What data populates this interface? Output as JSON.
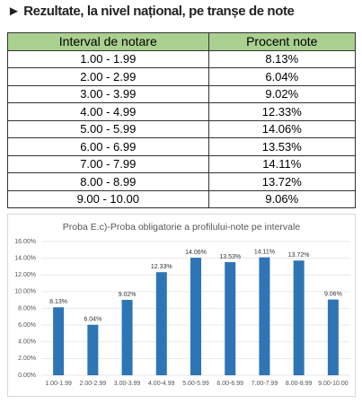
{
  "header": {
    "title": "► Rezultate, la nivel național, pe tranșe de note"
  },
  "table": {
    "columns": [
      "Interval de notare",
      "Procent note"
    ],
    "rows": [
      [
        "1.00 - 1.99",
        "8.13%"
      ],
      [
        "2.00 - 2.99",
        "6.04%"
      ],
      [
        "3.00 - 3.99",
        "9.02%"
      ],
      [
        "4.00 - 4.99",
        "12.33%"
      ],
      [
        "5.00 - 5.99",
        "14.06%"
      ],
      [
        "6.00 - 6.99",
        "13.53%"
      ],
      [
        "7.00 - 7.99",
        "14.11%"
      ],
      [
        "8.00 - 8.99",
        "13.72%"
      ],
      [
        "9.00 - 10.00",
        "9.06%"
      ]
    ]
  },
  "chart_data": {
    "type": "bar",
    "title": "Proba E.c)-Proba obligatorie a profilului-note pe intervale",
    "categories": [
      "1.00-1.99",
      "2.00-2.99",
      "3.00-3.99",
      "4.00-4.99",
      "5.00-5.99",
      "6.00-6.99",
      "7.00-7.99",
      "8.00-8.99",
      "9.00-10.00"
    ],
    "values": [
      8.13,
      6.04,
      9.02,
      12.33,
      14.06,
      13.53,
      14.11,
      13.72,
      9.06
    ],
    "value_labels": [
      "8.13%",
      "6.04%",
      "9.02%",
      "12.33%",
      "14.06%",
      "13.53%",
      "14.11%",
      "13.72%",
      "9.06%"
    ],
    "color": "#2e75b6",
    "ylim": [
      0,
      16
    ],
    "yticks": [
      {
        "value": 0,
        "label": "0.00%"
      },
      {
        "value": 2,
        "label": "2.00%"
      },
      {
        "value": 4,
        "label": "4.00%"
      },
      {
        "value": 6,
        "label": "6.00%"
      },
      {
        "value": 8,
        "label": "8.00%"
      },
      {
        "value": 10,
        "label": "10.00%"
      },
      {
        "value": 12,
        "label": "12.00%"
      },
      {
        "value": 14,
        "label": "14.00%"
      },
      {
        "value": 16,
        "label": "16.00%"
      }
    ],
    "grid": true
  }
}
